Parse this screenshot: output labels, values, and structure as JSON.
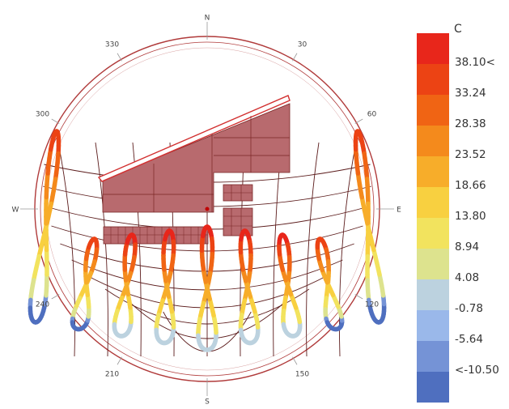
{
  "chart_data": {
    "type": "sunpath",
    "title": "",
    "compass": {
      "directions": [
        {
          "label": "N",
          "azimuth": 0
        },
        {
          "label": "E",
          "azimuth": 90
        },
        {
          "label": "S",
          "azimuth": 180
        },
        {
          "label": "W",
          "azimuth": 270
        }
      ],
      "degree_ticks": [
        {
          "label": "30",
          "azimuth": 30
        },
        {
          "label": "60",
          "azimuth": 60
        },
        {
          "label": "120",
          "azimuth": 120
        },
        {
          "label": "150",
          "azimuth": 150
        },
        {
          "label": "210",
          "azimuth": 210
        },
        {
          "label": "240",
          "azimuth": 240
        },
        {
          "label": "300",
          "azimuth": 300
        },
        {
          "label": "330",
          "azimuth": 330
        }
      ]
    },
    "analemma_count": 9,
    "legend": {
      "title": "C",
      "labels": [
        "38.10<",
        "33.24",
        "28.38",
        "23.52",
        "18.66",
        "13.80",
        "8.94",
        "4.08",
        "-0.78",
        "-5.64",
        "<-10.50"
      ],
      "colors": [
        "#e8261b",
        "#ec4314",
        "#f06414",
        "#f48a1c",
        "#f7ad2a",
        "#f8d040",
        "#f2e35e",
        "#dde38e",
        "#bcd2df",
        "#9ab8ea",
        "#7593d6",
        "#4f6fbf"
      ]
    },
    "colors": {
      "circle": "#b03a3a",
      "grid": "#5c1c1c",
      "obstruction_fill": "#b86a6e",
      "obstruction_stroke": "#7a2626"
    }
  }
}
